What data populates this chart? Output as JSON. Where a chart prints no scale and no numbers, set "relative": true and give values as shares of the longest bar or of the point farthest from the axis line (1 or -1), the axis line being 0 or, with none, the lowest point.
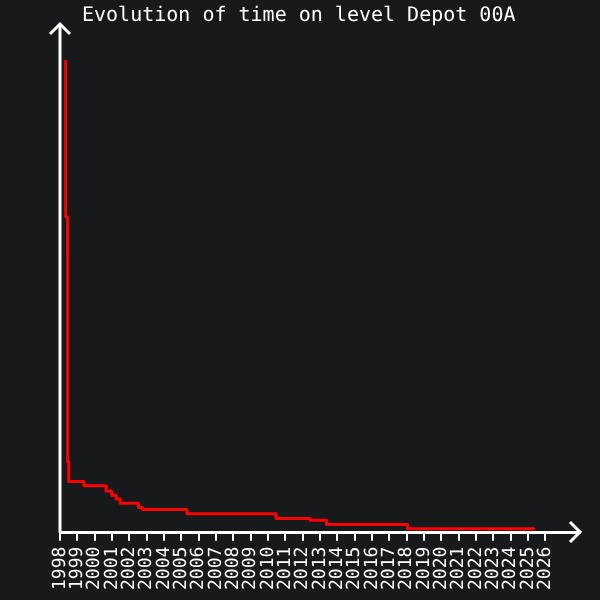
{
  "chart_data": {
    "type": "step",
    "title": "Evolution of time on level Depot 00A",
    "relative": true,
    "xlim": [
      1998,
      2028
    ],
    "xticks": [
      1998,
      1999,
      2000,
      2001,
      2002,
      2003,
      2004,
      2005,
      2006,
      2007,
      2008,
      2009,
      2010,
      2011,
      2012,
      2013,
      2014,
      2015,
      2016,
      2017,
      2018,
      2019,
      2020,
      2021,
      2022,
      2023,
      2024,
      2025,
      2026
    ],
    "grid": false,
    "legend": false,
    "series": [
      {
        "color": "#ff0000",
        "x": [
          1998.33,
          1998.44,
          1998.5,
          1999.38,
          2000.66,
          2000.98,
          2001.24,
          2001.48,
          2002.53,
          2002.76,
          2005.33,
          2010.46,
          2012.45,
          2013.38,
          2018.05,
          2020.03,
          2025.4
        ],
        "values": [
          1,
          0.668,
          0.15,
          0.108,
          0.099,
          0.088,
          0.079,
          0.071,
          0.062,
          0.053,
          0.049,
          0.04,
          0.03,
          0.026,
          0.017,
          0.008,
          0.008
        ]
      }
    ]
  }
}
